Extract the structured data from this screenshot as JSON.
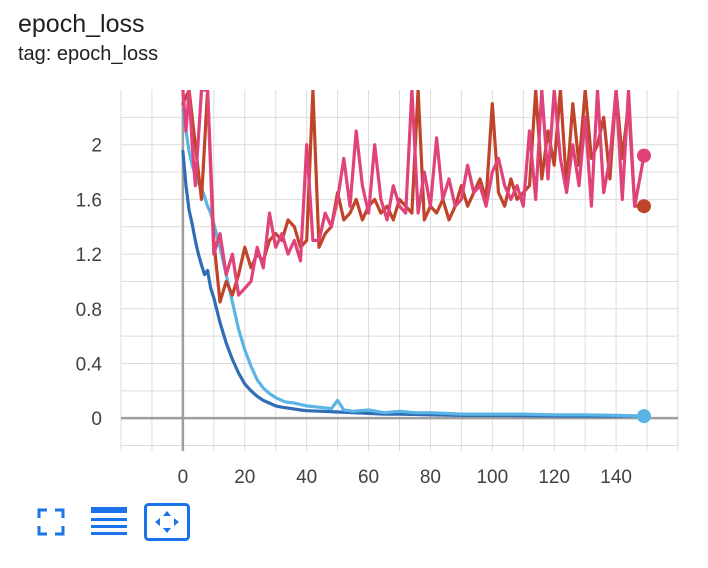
{
  "card": {
    "title": "epoch_loss",
    "subtitle": "tag: epoch_loss"
  },
  "colors": {
    "dark_blue": "#2f6db5",
    "light_blue": "#5ab4e6",
    "dark_red": "#c0442a",
    "pink": "#e0437a",
    "toolbar_icon": "#1a73e8"
  },
  "toolbar": {
    "fullscreen_icon": "fullscreen-icon",
    "legend_icon": "list-icon",
    "fit_icon": "fit-domain-icon"
  },
  "chart_data": {
    "type": "line",
    "title": "",
    "xlabel": "",
    "ylabel": "",
    "xlim": [
      -20,
      160
    ],
    "ylim": [
      -0.24,
      2.4
    ],
    "x_ticks": [
      0,
      20,
      40,
      60,
      80,
      100,
      120,
      140
    ],
    "y_ticks": [
      0,
      0.4,
      0.8,
      1.2,
      1.6,
      2
    ],
    "y_tick_labels": [
      "0",
      "0.4",
      "0.8",
      "1.2",
      "1.6",
      "2"
    ],
    "grid": true,
    "series": [
      {
        "color": "#2f6db5",
        "x": [
          0,
          1,
          2,
          3,
          4,
          5,
          6,
          7,
          8,
          9,
          10,
          12,
          14,
          16,
          18,
          20,
          22,
          24,
          26,
          28,
          30,
          32,
          35,
          38,
          40,
          45,
          50,
          55,
          60,
          65,
          70,
          80,
          90,
          100,
          110,
          120,
          130,
          140,
          149
        ],
        "y": [
          1.95,
          1.7,
          1.52,
          1.42,
          1.3,
          1.2,
          1.12,
          1.05,
          1.08,
          0.95,
          0.88,
          0.7,
          0.55,
          0.43,
          0.33,
          0.25,
          0.2,
          0.16,
          0.13,
          0.11,
          0.09,
          0.08,
          0.07,
          0.06,
          0.055,
          0.05,
          0.045,
          0.04,
          0.035,
          0.03,
          0.03,
          0.025,
          0.02,
          0.02,
          0.018,
          0.016,
          0.015,
          0.015,
          0.015
        ],
        "end_marker": false
      },
      {
        "color": "#5ab4e6",
        "x": [
          0,
          1,
          2,
          3,
          4,
          5,
          6,
          7,
          8,
          9,
          10,
          12,
          14,
          16,
          18,
          20,
          22,
          24,
          26,
          28,
          30,
          33,
          36,
          40,
          44,
          48,
          50,
          52,
          55,
          60,
          65,
          70,
          75,
          80,
          90,
          100,
          110,
          120,
          130,
          140,
          149
        ],
        "y": [
          2.25,
          2.1,
          1.95,
          1.85,
          1.78,
          1.72,
          1.68,
          1.62,
          1.55,
          1.5,
          1.42,
          1.25,
          1.05,
          0.85,
          0.65,
          0.5,
          0.38,
          0.28,
          0.22,
          0.18,
          0.15,
          0.12,
          0.11,
          0.09,
          0.08,
          0.07,
          0.13,
          0.06,
          0.05,
          0.06,
          0.04,
          0.05,
          0.04,
          0.04,
          0.03,
          0.03,
          0.03,
          0.025,
          0.025,
          0.02,
          0.015
        ],
        "end_marker": true
      },
      {
        "color": "#c0442a",
        "x": [
          0,
          2,
          4,
          6,
          8,
          10,
          12,
          14,
          16,
          18,
          20,
          22,
          24,
          26,
          28,
          30,
          32,
          34,
          36,
          38,
          40,
          42,
          44,
          46,
          48,
          50,
          52,
          54,
          56,
          58,
          60,
          62,
          64,
          66,
          68,
          70,
          72,
          74,
          76,
          78,
          80,
          82,
          84,
          86,
          88,
          90,
          92,
          94,
          96,
          98,
          100,
          102,
          104,
          106,
          108,
          110,
          112,
          114,
          116,
          118,
          120,
          122,
          124,
          126,
          128,
          130,
          132,
          134,
          136,
          138,
          140,
          142,
          144,
          146,
          149
        ],
        "y": [
          2.3,
          2.4,
          2.0,
          1.6,
          2.4,
          1.3,
          0.85,
          1.0,
          0.9,
          1.05,
          1.25,
          1.1,
          1.2,
          1.15,
          1.3,
          1.35,
          1.3,
          1.45,
          1.4,
          1.25,
          1.3,
          2.4,
          1.25,
          1.35,
          1.4,
          1.65,
          1.45,
          1.5,
          1.6,
          1.45,
          1.55,
          1.6,
          1.5,
          1.55,
          1.45,
          1.6,
          1.55,
          1.5,
          2.4,
          1.45,
          1.55,
          1.5,
          1.6,
          1.45,
          1.55,
          1.7,
          1.55,
          1.65,
          1.75,
          1.6,
          2.3,
          1.65,
          1.55,
          1.75,
          1.6,
          1.65,
          1.7,
          2.4,
          1.75,
          2.1,
          1.85,
          2.4,
          1.7,
          2.3,
          1.85,
          2.4,
          1.9,
          2.0,
          2.2,
          1.75,
          2.4,
          1.9,
          2.3,
          1.55,
          1.55
        ],
        "end_marker": true
      },
      {
        "color": "#e0437a",
        "x": [
          0,
          1,
          2,
          3,
          4,
          6,
          8,
          10,
          12,
          14,
          16,
          18,
          20,
          22,
          24,
          26,
          28,
          30,
          32,
          34,
          36,
          38,
          40,
          42,
          44,
          46,
          48,
          50,
          52,
          54,
          56,
          58,
          60,
          62,
          64,
          66,
          68,
          70,
          72,
          74,
          76,
          78,
          80,
          82,
          84,
          86,
          88,
          90,
          92,
          94,
          96,
          98,
          100,
          102,
          104,
          106,
          108,
          110,
          112,
          114,
          116,
          118,
          120,
          122,
          124,
          126,
          128,
          130,
          132,
          134,
          136,
          138,
          140,
          142,
          144,
          146,
          149
        ],
        "y": [
          2.4,
          2.1,
          2.4,
          2.0,
          1.7,
          2.4,
          2.4,
          1.2,
          1.35,
          1.05,
          1.2,
          0.9,
          0.95,
          1.0,
          1.25,
          1.1,
          1.5,
          1.25,
          1.35,
          1.2,
          1.3,
          1.15,
          2.0,
          1.3,
          1.3,
          1.5,
          1.4,
          1.6,
          1.9,
          1.55,
          2.1,
          1.7,
          1.5,
          2.0,
          1.6,
          1.45,
          1.7,
          1.55,
          1.5,
          2.4,
          1.5,
          1.8,
          1.55,
          2.05,
          1.6,
          1.75,
          1.55,
          1.6,
          1.85,
          1.65,
          1.7,
          1.55,
          1.8,
          1.9,
          1.7,
          1.6,
          1.7,
          1.55,
          2.1,
          1.6,
          2.4,
          1.75,
          2.4,
          1.9,
          1.65,
          2.0,
          1.7,
          2.2,
          1.55,
          2.4,
          1.65,
          1.9,
          2.4,
          1.6,
          2.4,
          1.55,
          1.92
        ],
        "end_marker": true
      }
    ]
  }
}
